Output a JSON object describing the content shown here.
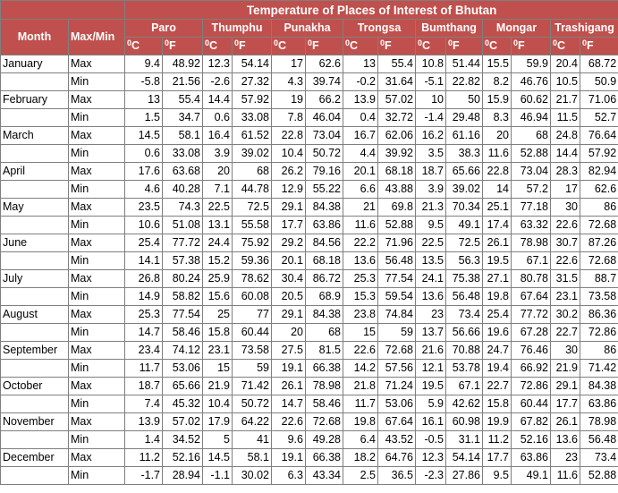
{
  "title": "Temperature of Places of Interest of Bhutan",
  "headers": {
    "month": "Month",
    "maxmin": "Max/Min",
    "celsius_sup": "0",
    "celsius_letter": "C",
    "fahrenheit_sup": "0",
    "fahrenheit_letter": "F"
  },
  "places": [
    "Paro",
    "Thumphu",
    "Punakha",
    "Trongsa",
    "Bumthang",
    "Mongar",
    "Trashigang"
  ],
  "rows": [
    {
      "month": "January",
      "type": "Max",
      "values": [
        "9.4",
        "48.92",
        "12.3",
        "54.14",
        "17",
        "62.6",
        "13",
        "55.4",
        "10.8",
        "51.44",
        "15.5",
        "59.9",
        "20.4",
        "68.72"
      ]
    },
    {
      "month": "",
      "type": "Min",
      "values": [
        "-5.8",
        "21.56",
        "-2.6",
        "27.32",
        "4.3",
        "39.74",
        "-0.2",
        "31.64",
        "-5.1",
        "22.82",
        "8.2",
        "46.76",
        "10.5",
        "50.9"
      ]
    },
    {
      "month": "February",
      "type": "Max",
      "values": [
        "13",
        "55.4",
        "14.4",
        "57.92",
        "19",
        "66.2",
        "13.9",
        "57.02",
        "10",
        "50",
        "15.9",
        "60.62",
        "21.7",
        "71.06"
      ]
    },
    {
      "month": "",
      "type": "Min",
      "values": [
        "1.5",
        "34.7",
        "0.6",
        "33.08",
        "7.8",
        "46.04",
        "0.4",
        "32.72",
        "-1.4",
        "29.48",
        "8.3",
        "46.94",
        "11.5",
        "52.7"
      ]
    },
    {
      "month": "March",
      "type": "Max",
      "values": [
        "14.5",
        "58.1",
        "16.4",
        "61.52",
        "22.8",
        "73.04",
        "16.7",
        "62.06",
        "16.2",
        "61.16",
        "20",
        "68",
        "24.8",
        "76.64"
      ]
    },
    {
      "month": "",
      "type": "Min",
      "values": [
        "0.6",
        "33.08",
        "3.9",
        "39.02",
        "10.4",
        "50.72",
        "4.4",
        "39.92",
        "3.5",
        "38.3",
        "11.6",
        "52.88",
        "14.4",
        "57.92"
      ]
    },
    {
      "month": "April",
      "type": "Max",
      "values": [
        "17.6",
        "63.68",
        "20",
        "68",
        "26.2",
        "79.16",
        "20.1",
        "68.18",
        "18.7",
        "65.66",
        "22.8",
        "73.04",
        "28.3",
        "82.94"
      ]
    },
    {
      "month": "",
      "type": "Min",
      "values": [
        "4.6",
        "40.28",
        "7.1",
        "44.78",
        "12.9",
        "55.22",
        "6.6",
        "43.88",
        "3.9",
        "39.02",
        "14",
        "57.2",
        "17",
        "62.6"
      ]
    },
    {
      "month": "May",
      "type": "Max",
      "values": [
        "23.5",
        "74.3",
        "22.5",
        "72.5",
        "29.1",
        "84.38",
        "21",
        "69.8",
        "21.3",
        "70.34",
        "25.1",
        "77.18",
        "30",
        "86"
      ]
    },
    {
      "month": "",
      "type": "Min",
      "values": [
        "10.6",
        "51.08",
        "13.1",
        "55.58",
        "17.7",
        "63.86",
        "11.6",
        "52.88",
        "9.5",
        "49.1",
        "17.4",
        "63.32",
        "22.6",
        "72.68"
      ]
    },
    {
      "month": "June",
      "type": "Max",
      "values": [
        "25.4",
        "77.72",
        "24.4",
        "75.92",
        "29.2",
        "84.56",
        "22.2",
        "71.96",
        "22.5",
        "72.5",
        "26.1",
        "78.98",
        "30.7",
        "87.26"
      ]
    },
    {
      "month": "",
      "type": "Min",
      "values": [
        "14.1",
        "57.38",
        "15.2",
        "59.36",
        "20.1",
        "68.18",
        "13.6",
        "56.48",
        "13.5",
        "56.3",
        "19.5",
        "67.1",
        "22.6",
        "72.68"
      ]
    },
    {
      "month": "July",
      "type": "Max",
      "values": [
        "26.8",
        "80.24",
        "25.9",
        "78.62",
        "30.4",
        "86.72",
        "25.3",
        "77.54",
        "24.1",
        "75.38",
        "27.1",
        "80.78",
        "31.5",
        "88.7"
      ]
    },
    {
      "month": "",
      "type": "Min",
      "values": [
        "14.9",
        "58.82",
        "15.6",
        "60.08",
        "20.5",
        "68.9",
        "15.3",
        "59.54",
        "13.6",
        "56.48",
        "19.8",
        "67.64",
        "23.1",
        "73.58"
      ]
    },
    {
      "month": "August",
      "type": "Max",
      "values": [
        "25.3",
        "77.54",
        "25",
        "77",
        "29.1",
        "84.38",
        "23.8",
        "74.84",
        "23",
        "73.4",
        "25.4",
        "77.72",
        "30.2",
        "86.36"
      ]
    },
    {
      "month": "",
      "type": "Min",
      "values": [
        "14.7",
        "58.46",
        "15.8",
        "60.44",
        "20",
        "68",
        "15",
        "59",
        "13.7",
        "56.66",
        "19.6",
        "67.28",
        "22.7",
        "72.86"
      ]
    },
    {
      "month": "September",
      "type": "Max",
      "values": [
        "23.4",
        "74.12",
        "23.1",
        "73.58",
        "27.5",
        "81.5",
        "22.6",
        "72.68",
        "21.6",
        "70.88",
        "24.7",
        "76.46",
        "30",
        "86"
      ]
    },
    {
      "month": "",
      "type": "Min",
      "values": [
        "11.7",
        "53.06",
        "15",
        "59",
        "19.1",
        "66.38",
        "14.2",
        "57.56",
        "12.1",
        "53.78",
        "19.4",
        "66.92",
        "21.9",
        "71.42"
      ]
    },
    {
      "month": "October",
      "type": "Max",
      "values": [
        "18.7",
        "65.66",
        "21.9",
        "71.42",
        "26.1",
        "78.98",
        "21.8",
        "71.24",
        "19.5",
        "67.1",
        "22.7",
        "72.86",
        "29.1",
        "84.38"
      ]
    },
    {
      "month": "",
      "type": "Min",
      "values": [
        "7.4",
        "45.32",
        "10.4",
        "50.72",
        "14.7",
        "58.46",
        "11.7",
        "53.06",
        "5.9",
        "42.62",
        "15.8",
        "60.44",
        "17.7",
        "63.86"
      ]
    },
    {
      "month": "November",
      "type": "Max",
      "values": [
        "13.9",
        "57.02",
        "17.9",
        "64.22",
        "22.6",
        "72.68",
        "19.8",
        "67.64",
        "16.1",
        "60.98",
        "19.9",
        "67.82",
        "26.1",
        "78.98"
      ]
    },
    {
      "month": "",
      "type": "Min",
      "values": [
        "1.4",
        "34.52",
        "5",
        "41",
        "9.6",
        "49.28",
        "6.4",
        "43.52",
        "-0.5",
        "31.1",
        "11.2",
        "52.16",
        "13.6",
        "56.48"
      ]
    },
    {
      "month": "December",
      "type": "Max",
      "values": [
        "11.2",
        "52.16",
        "14.5",
        "58.1",
        "19.1",
        "66.38",
        "18.2",
        "64.76",
        "12.3",
        "54.14",
        "17.7",
        "63.86",
        "23",
        "73.4"
      ]
    },
    {
      "month": "",
      "type": "Min",
      "values": [
        "-1.7",
        "28.94",
        "-1.1",
        "30.02",
        "6.3",
        "43.34",
        "2.5",
        "36.5",
        "-2.3",
        "27.86",
        "9.5",
        "49.1",
        "11.6",
        "52.88"
      ]
    }
  ]
}
